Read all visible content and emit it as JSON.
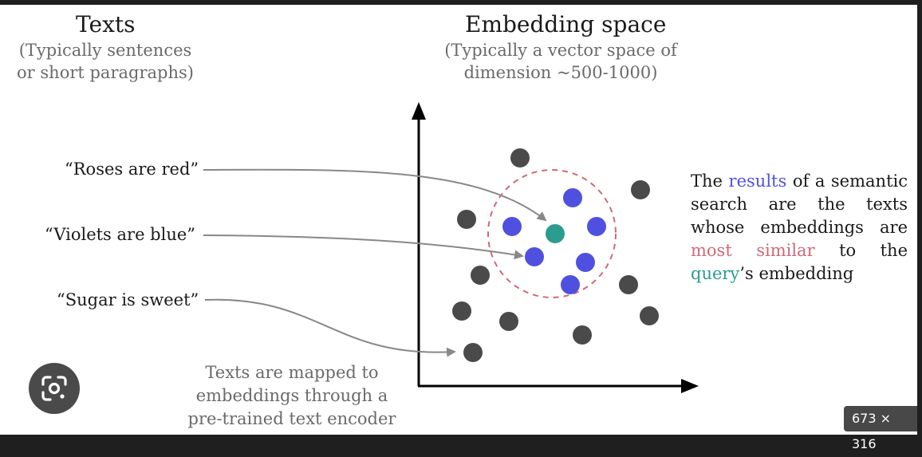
{
  "texts_heading": {
    "title": "Texts",
    "subtitle_line1": "(Typically sentences",
    "subtitle_line2": "or short paragraphs)"
  },
  "space_heading": {
    "title": "Embedding space",
    "subtitle_line1": "(Typically a vector space of",
    "subtitle_line2": "dimension ~500-1000)"
  },
  "example_texts": [
    "“Roses are red”",
    "“Violets are blue”",
    "“Sugar is sweet”"
  ],
  "encoder_note": {
    "line1": "Texts are mapped to",
    "line2": "embeddings through a",
    "line3": "pre-trained text encoder"
  },
  "explanation": {
    "w_the": "The",
    "w_results": "results",
    "w_rest1": "of a semantic search are the texts whose embeddings are",
    "w_most_similar": "most similar",
    "w_to_the": "to the",
    "w_query": "query",
    "w_rest2": "’s embedding"
  },
  "colors": {
    "result": "#5050e0",
    "query": "#2a9d8f",
    "other": "#4a4a4a",
    "similar": "#d06878",
    "circle": "#d06878",
    "arrow": "#888888",
    "axis": "#000000"
  },
  "image_size_badge": "673 × 316",
  "lens_icon": "google-lens-icon"
}
